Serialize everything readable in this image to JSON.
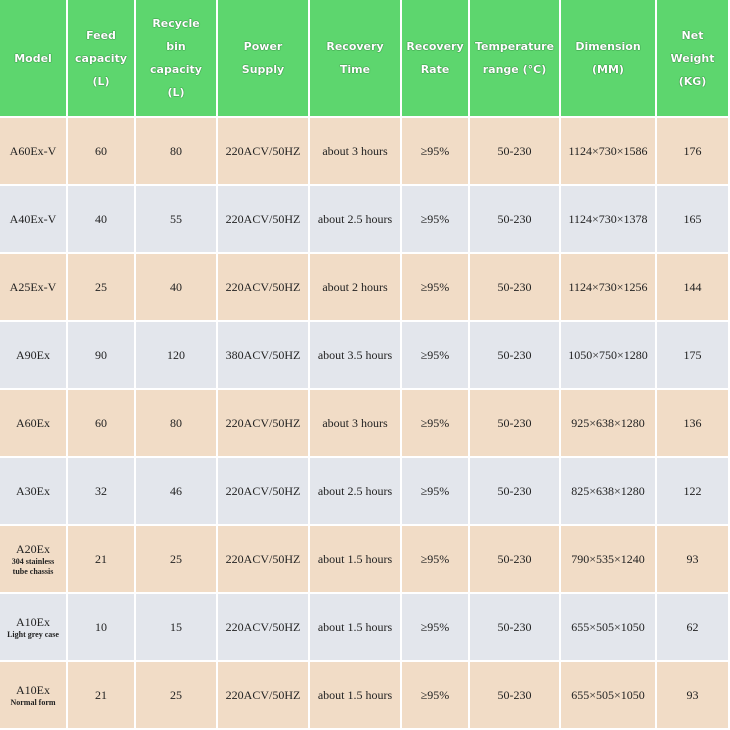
{
  "table": {
    "header": [
      "Model",
      "Feed capacity (L)",
      "Recycle bin capacity (L)",
      "Power Supply",
      "Recovery Time",
      "Recovery Rate",
      "Temperature range (°C)",
      "Dimension (MM)",
      "Net Weight (KG)"
    ],
    "rows": [
      {
        "model": "A60Ex-V",
        "cells": [
          60,
          80,
          "220ACV/50HZ",
          "about 3 hours",
          "≥95%",
          "50-230",
          "1124×730×1586",
          176
        ]
      },
      {
        "model": "A40Ex-V",
        "cells": [
          40,
          55,
          "220ACV/50HZ",
          "about 2.5 hours",
          "≥95%",
          "50-230",
          "1124×730×1378",
          165
        ]
      },
      {
        "model": "A25Ex-V",
        "cells": [
          25,
          40,
          "220ACV/50HZ",
          "about 2 hours",
          "≥95%",
          "50-230",
          "1124×730×1256",
          144
        ]
      },
      {
        "model": "A90Ex",
        "cells": [
          90,
          120,
          "380ACV/50HZ",
          "about 3.5 hours",
          "≥95%",
          "50-230",
          "1050×750×1280",
          175
        ]
      },
      {
        "model": "A60Ex",
        "cells": [
          60,
          80,
          "220ACV/50HZ",
          "about 3 hours",
          "≥95%",
          "50-230",
          "925×638×1280",
          136
        ]
      },
      {
        "model": "A30Ex",
        "cells": [
          32,
          46,
          "220ACV/50HZ",
          "about 2.5 hours",
          "≥95%",
          "50-230",
          "825×638×1280",
          122
        ]
      },
      {
        "model": "A20Ex",
        "note": "304 stainless tube chassis",
        "cells": [
          21,
          25,
          "220ACV/50HZ",
          "about 1.5 hours",
          "≥95%",
          "50-230",
          "790×535×1240",
          93
        ]
      },
      {
        "model": "A10Ex",
        "note": "Light grey case",
        "cells": [
          10,
          15,
          "220ACV/50HZ",
          "about 1.5 hours",
          "≥95%",
          "50-230",
          "655×505×1050",
          62
        ]
      },
      {
        "model": "A10Ex",
        "note": "Normal form",
        "cells": [
          21,
          25,
          "220ACV/50HZ",
          "about 1.5 hours",
          "≥95%",
          "50-230",
          "655×505×1050",
          93
        ]
      }
    ]
  }
}
